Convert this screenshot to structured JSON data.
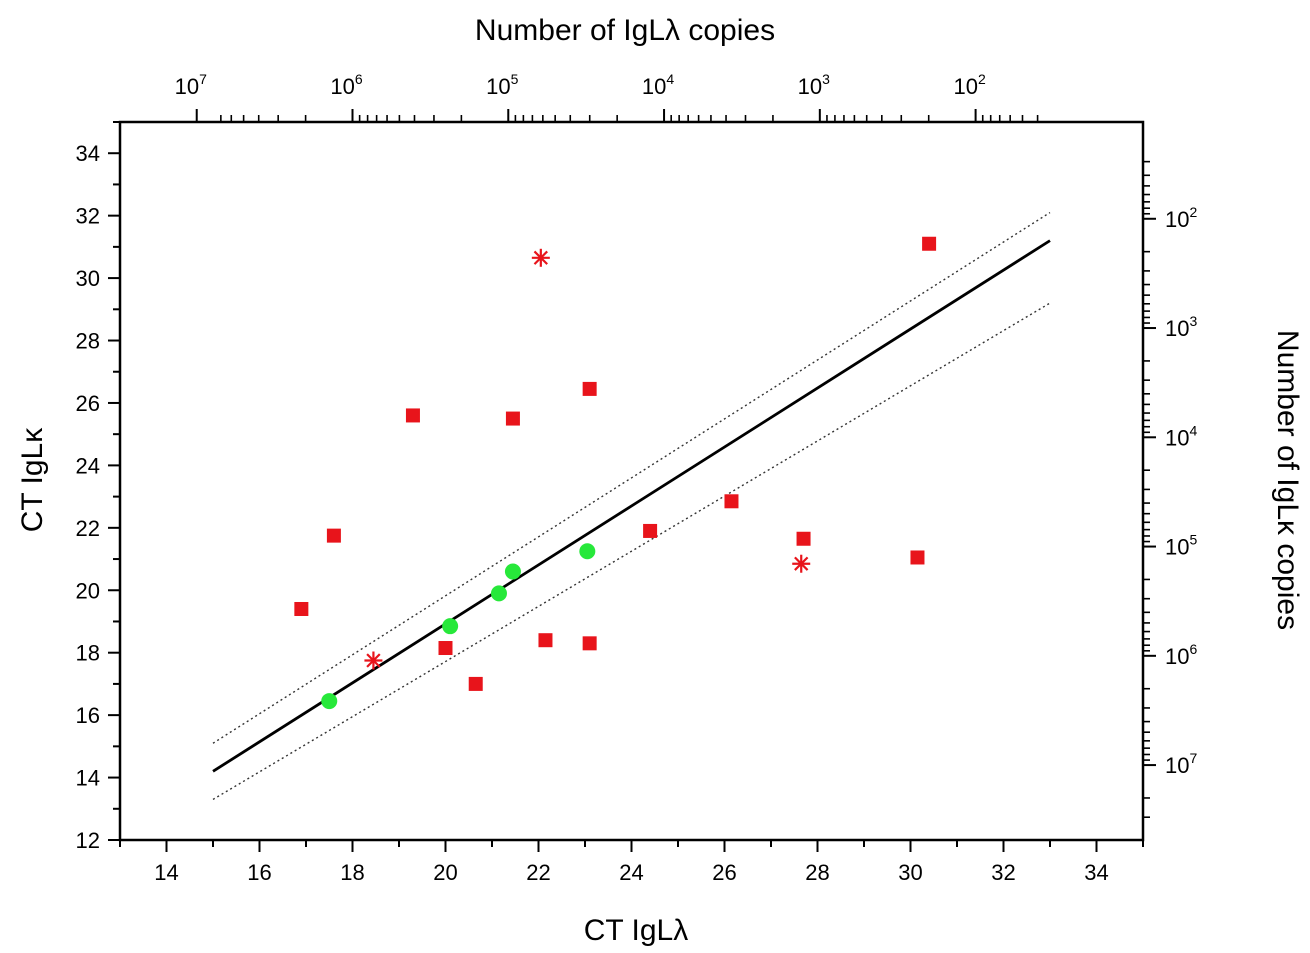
{
  "chart_data": {
    "type": "scatter",
    "xlabel": "CT IgLλ",
    "ylabel": "CT IgLκ",
    "top_label": "Number of IgLλ copies",
    "right_label": "Number of IgLκ copies",
    "xlim": [
      13,
      35
    ],
    "ylim": [
      12,
      35
    ],
    "x_ticks": [
      14,
      16,
      18,
      20,
      22,
      24,
      26,
      28,
      30,
      32,
      34
    ],
    "y_ticks": [
      12,
      14,
      16,
      18,
      20,
      22,
      24,
      26,
      28,
      30,
      32,
      34
    ],
    "top_ticks": [
      {
        "ct": 14.65,
        "base": "10",
        "exp": "7"
      },
      {
        "ct": 18.0,
        "base": "10",
        "exp": "6"
      },
      {
        "ct": 21.35,
        "base": "10",
        "exp": "5"
      },
      {
        "ct": 24.7,
        "base": "10",
        "exp": "4"
      },
      {
        "ct": 28.05,
        "base": "10",
        "exp": "3"
      },
      {
        "ct": 31.4,
        "base": "10",
        "exp": "2"
      }
    ],
    "right_ticks": [
      {
        "ct": 14.4,
        "base": "10",
        "exp": "7"
      },
      {
        "ct": 17.9,
        "base": "10",
        "exp": "6"
      },
      {
        "ct": 21.4,
        "base": "10",
        "exp": "5"
      },
      {
        "ct": 24.9,
        "base": "10",
        "exp": "4"
      },
      {
        "ct": 28.4,
        "base": "10",
        "exp": "3"
      },
      {
        "ct": 31.9,
        "base": "10",
        "exp": "2"
      }
    ],
    "squares": [
      {
        "x": 16.9,
        "y": 19.4
      },
      {
        "x": 17.6,
        "y": 21.75
      },
      {
        "x": 19.3,
        "y": 25.6
      },
      {
        "x": 20.0,
        "y": 18.15
      },
      {
        "x": 20.65,
        "y": 17.0
      },
      {
        "x": 21.45,
        "y": 25.5
      },
      {
        "x": 22.15,
        "y": 18.4
      },
      {
        "x": 23.1,
        "y": 26.45
      },
      {
        "x": 23.1,
        "y": 18.3
      },
      {
        "x": 24.4,
        "y": 21.9
      },
      {
        "x": 26.15,
        "y": 22.85
      },
      {
        "x": 27.7,
        "y": 21.65
      },
      {
        "x": 30.15,
        "y": 21.05
      },
      {
        "x": 30.4,
        "y": 31.1
      }
    ],
    "circles": [
      {
        "x": 17.5,
        "y": 16.45
      },
      {
        "x": 20.1,
        "y": 18.85
      },
      {
        "x": 21.15,
        "y": 19.9
      },
      {
        "x": 21.45,
        "y": 20.6
      },
      {
        "x": 23.05,
        "y": 21.25
      }
    ],
    "asterisks": [
      {
        "x": 18.45,
        "y": 17.75
      },
      {
        "x": 22.05,
        "y": 30.65
      },
      {
        "x": 27.65,
        "y": 20.85
      }
    ],
    "fit_line": {
      "x": [
        15,
        33
      ],
      "y": [
        14.2,
        31.2
      ]
    },
    "upper_band": {
      "x": [
        15,
        33
      ],
      "y": [
        15.1,
        32.1
      ]
    },
    "lower_band": {
      "x": [
        15,
        33
      ],
      "y": [
        13.3,
        29.2
      ]
    },
    "colors": {
      "square": "#e8141b",
      "circle": "#27e83a",
      "asterisk": "#e8141b",
      "line": "#000000"
    }
  }
}
